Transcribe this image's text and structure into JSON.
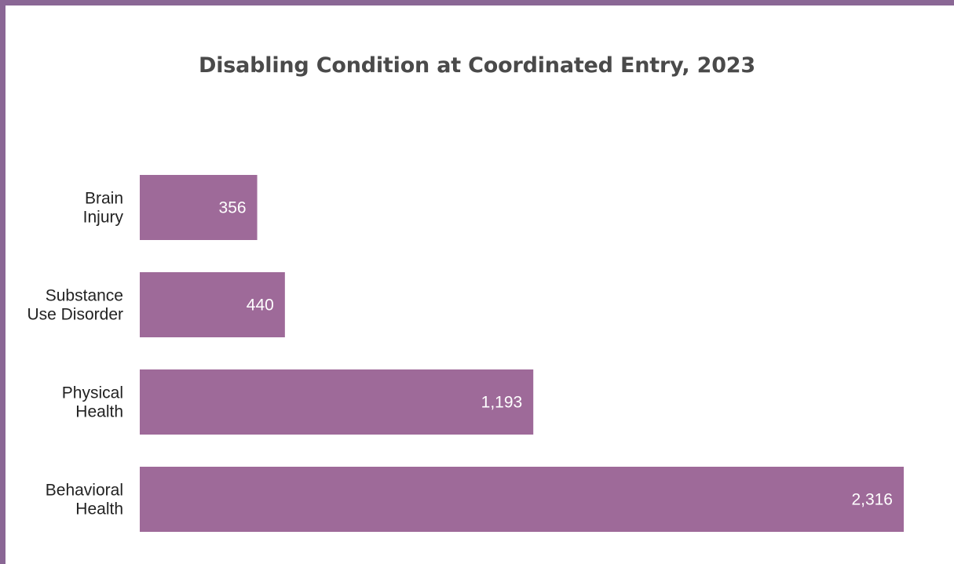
{
  "chart_data": {
    "type": "bar",
    "orientation": "horizontal",
    "title": "Disabling Condition at Coordinated Entry, 2023",
    "xlabel": "",
    "ylabel": "",
    "categories": [
      [
        "Brain",
        "Injury"
      ],
      [
        "Substance",
        "Use Disorder"
      ],
      [
        "Physical",
        "Health"
      ],
      [
        "Behavioral",
        "Health"
      ]
    ],
    "values": [
      356,
      440,
      1193,
      2316
    ],
    "value_labels": [
      "356",
      "440",
      "1,193",
      "2,316"
    ],
    "xlim": [
      0,
      2316
    ],
    "grid": false,
    "legend": "none",
    "colors": {
      "bar": "#9e6a99",
      "frame": "#8a6795",
      "value_text": "#ffffff"
    }
  }
}
